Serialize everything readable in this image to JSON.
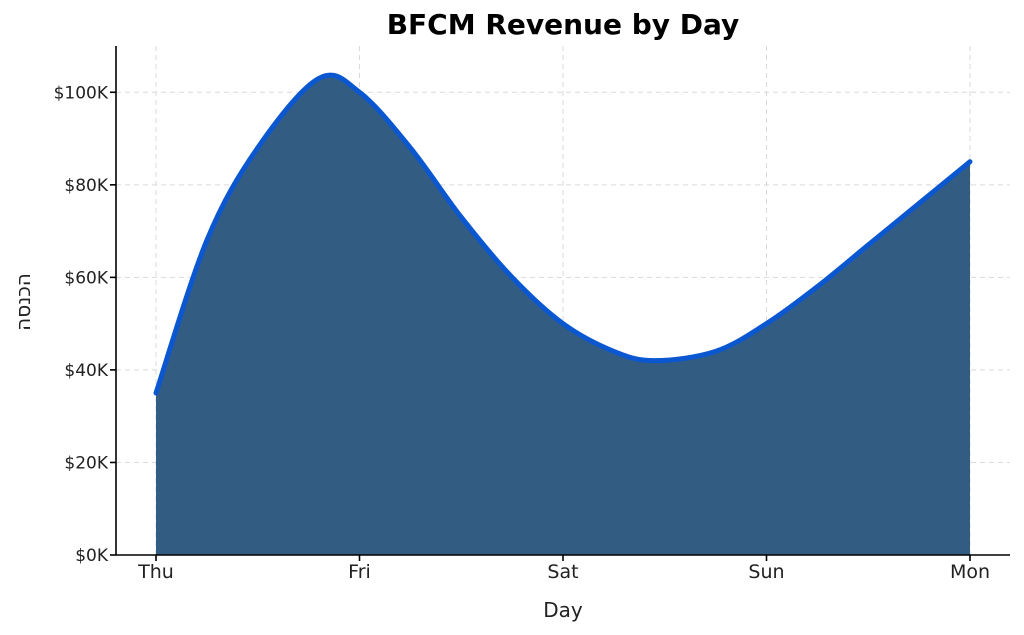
{
  "chart_data": {
    "type": "area",
    "title": "BFCM Revenue by Day",
    "xlabel": "Day",
    "ylabel": "הכנסה",
    "categories": [
      "Thu",
      "Fri",
      "Sat",
      "Sun",
      "Mon"
    ],
    "series": [
      {
        "values": [
          35000,
          100000,
          50000,
          50000,
          85000
        ]
      }
    ],
    "curve_detail": {
      "x": [
        0,
        0.25,
        0.5,
        0.8,
        1.0,
        1.25,
        1.5,
        1.75,
        2.0,
        2.25,
        2.45,
        2.75,
        3.0,
        3.25,
        3.5,
        3.75,
        4.0
      ],
      "y": [
        35000,
        68000,
        88000,
        103000,
        100000,
        88000,
        73000,
        60000,
        50000,
        44000,
        42000,
        44000,
        50000,
        58000,
        67000,
        76000,
        85000
      ]
    },
    "y_ticks": [
      0,
      20000,
      40000,
      60000,
      80000,
      100000
    ],
    "y_tick_labels": [
      "$0K",
      "$20K",
      "$40K",
      "$60K",
      "$80K",
      "$100K"
    ],
    "ylim": [
      0,
      110000
    ],
    "grid": true,
    "colors": {
      "fill": "#335c82",
      "line": "#0b57d0"
    }
  }
}
